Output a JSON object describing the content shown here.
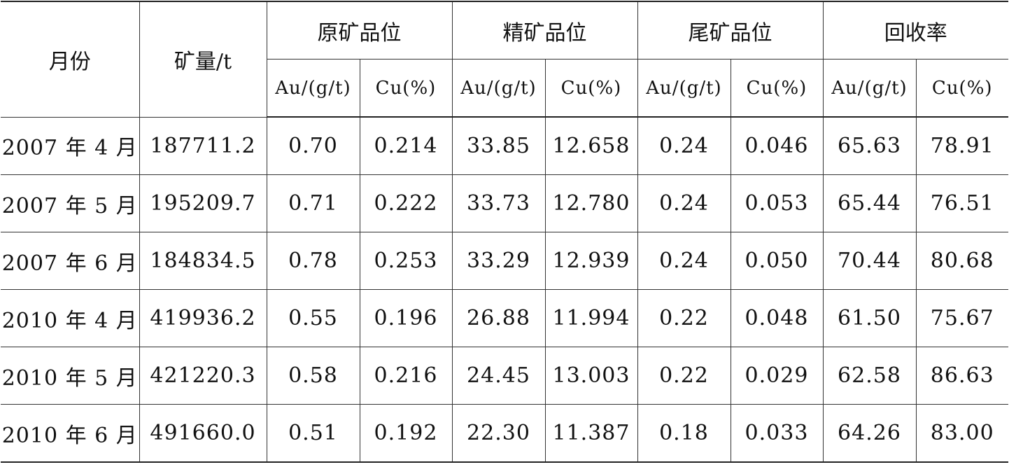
{
  "table": {
    "header": {
      "month": "月份",
      "ore_amount": "矿量/t",
      "groups": [
        "原矿品位",
        "精矿品位",
        "尾矿品位",
        "回收率"
      ],
      "subcolumns": [
        "Au/(g/t)",
        "Cu(%)",
        "Au/(g/t)",
        "Cu(%)",
        "Au/(g/t)",
        "Cu(%)",
        "Au/(g/t)",
        "Cu(%)"
      ]
    },
    "rows": [
      [
        "2007 年 4 月",
        "187711.2",
        "0.70",
        "0.214",
        "33.85",
        "12.658",
        "0.24",
        "0.046",
        "65.63",
        "78.91"
      ],
      [
        "2007 年 5 月",
        "195209.7",
        "0.71",
        "0.222",
        "33.73",
        "12.780",
        "0.24",
        "0.053",
        "65.44",
        "76.51"
      ],
      [
        "2007 年 6 月",
        "184834.5",
        "0.78",
        "0.253",
        "33.29",
        "12.939",
        "0.24",
        "0.050",
        "70.44",
        "80.68"
      ],
      [
        "2010 年 4 月",
        "419936.2",
        "0.55",
        "0.196",
        "26.88",
        "11.994",
        "0.22",
        "0.048",
        "61.50",
        "75.67"
      ],
      [
        "2010 年 5 月",
        "421220.3",
        "0.58",
        "0.216",
        "24.45",
        "13.003",
        "0.22",
        "0.029",
        "62.58",
        "86.63"
      ],
      [
        "2010 年 6 月",
        "491660.0",
        "0.51",
        "0.192",
        "22.30",
        "11.387",
        "0.18",
        "0.033",
        "64.26",
        "83.00"
      ]
    ]
  }
}
